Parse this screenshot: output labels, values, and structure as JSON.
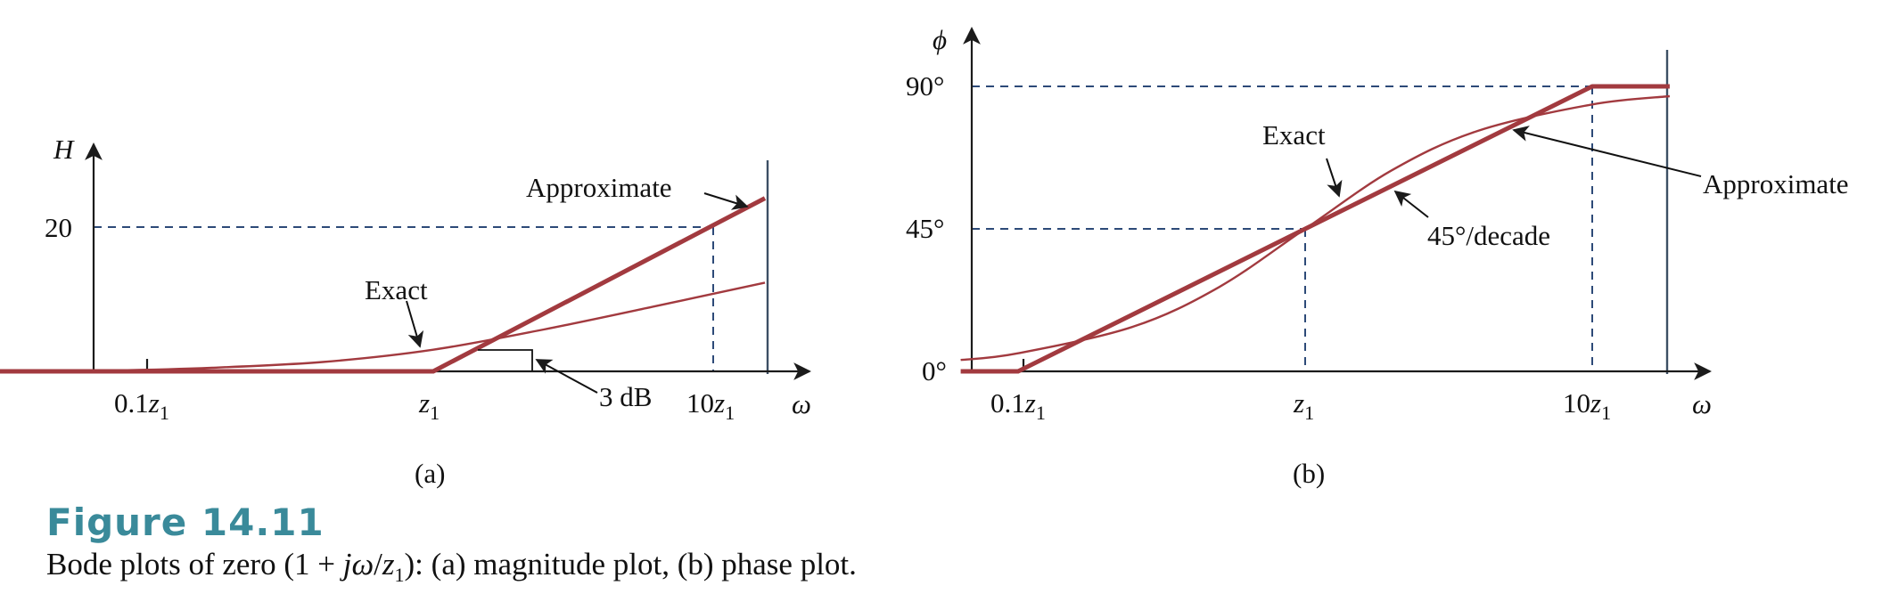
{
  "figure": {
    "title": "Figure 14.11",
    "caption": "Bode plots of zero (1 + jω/z1): (a) magnitude plot, (b) phase plot."
  },
  "colors": {
    "curve": "#a23a3f",
    "guide": "#2d4a78",
    "caption_title": "#3a8a9a"
  },
  "chart_data": [
    {
      "panel": "(a)",
      "type": "line",
      "x_scale": "log",
      "xlabel": "ω",
      "ylabel": "H",
      "x_ticks": [
        "0.1z1",
        "z1",
        "10z1"
      ],
      "y_ticks": [
        "20"
      ],
      "series": [
        {
          "name": "Exact",
          "x_decades": [
            -2,
            -1.6,
            -1.2,
            -0.8,
            -0.4,
            0,
            0.4,
            0.8,
            1.2
          ],
          "y": [
            0.0,
            0.0,
            0.1,
            0.5,
            1.3,
            3.0,
            5.8,
            9.0,
            12.3
          ]
        },
        {
          "name": "Approximate",
          "x_decades": [
            -2,
            0,
            1.2
          ],
          "y": [
            0,
            0,
            24
          ]
        }
      ],
      "annotations": [
        "3 dB"
      ]
    },
    {
      "panel": "(b)",
      "type": "line",
      "x_scale": "log",
      "xlabel": "ω",
      "ylabel": "ϕ",
      "x_ticks": [
        "0.1z1",
        "z1",
        "10z1"
      ],
      "y_ticks": [
        "0°",
        "45°",
        "90°"
      ],
      "series": [
        {
          "name": "Exact",
          "x_decades": [
            -1.2,
            -1,
            -0.6,
            -0.3,
            0,
            0.3,
            0.6,
            1,
            1.27
          ],
          "y": [
            3.6,
            5.7,
            14.1,
            26.6,
            45,
            63.4,
            75.9,
            84.3,
            86.9
          ]
        },
        {
          "name": "Approximate",
          "x_decades": [
            -1.2,
            -1,
            1,
            1.27
          ],
          "y": [
            0,
            0,
            90,
            90
          ]
        }
      ],
      "annotations": [
        "45°/decade"
      ]
    }
  ]
}
